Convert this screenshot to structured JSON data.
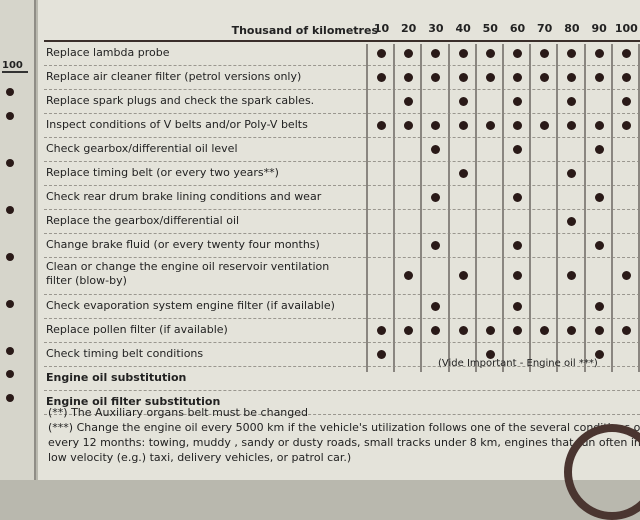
{
  "left_page": {
    "header": "100",
    "dot_rows": [
      0,
      1,
      3,
      5,
      7,
      9,
      11,
      12,
      13
    ]
  },
  "table": {
    "header_title": "Thousand of kilometres",
    "columns": [
      "10",
      "20",
      "30",
      "40",
      "50",
      "60",
      "70",
      "80",
      "90",
      "100"
    ],
    "rows": [
      {
        "label": "Replace lambda probe",
        "marks": [
          "10",
          "20",
          "30",
          "40",
          "50",
          "60",
          "70",
          "80",
          "90",
          "100"
        ]
      },
      {
        "label": "Replace air cleaner filter (petrol versions only)",
        "marks": [
          "10",
          "20",
          "30",
          "40",
          "50",
          "60",
          "70",
          "80",
          "90",
          "100"
        ]
      },
      {
        "label": "Replace spark plugs and check the spark cables.",
        "marks": [
          "20",
          "40",
          "60",
          "80",
          "100"
        ]
      },
      {
        "label": "Inspect conditions of V belts and/or Poly-V belts",
        "marks": [
          "10",
          "20",
          "30",
          "40",
          "50",
          "60",
          "70",
          "80",
          "90",
          "100"
        ]
      },
      {
        "label": "Check gearbox/differential oil level",
        "marks": [
          "30",
          "60",
          "90"
        ]
      },
      {
        "label": "Replace timing belt (or every two years**)",
        "marks": [
          "40",
          "80"
        ]
      },
      {
        "label": "Check rear drum brake lining conditions and wear",
        "marks": [
          "30",
          "60",
          "90"
        ]
      },
      {
        "label": "Replace the gearbox/differential oil",
        "marks": [
          "80"
        ]
      },
      {
        "label": "Change brake fluid (or every twenty four months)",
        "marks": [
          "30",
          "60",
          "90"
        ]
      },
      {
        "label": "Clean or change the engine oil reservoir ventilation filter (blow-by)",
        "marks": [
          "20",
          "40",
          "60",
          "80",
          "100"
        ],
        "tall": true
      },
      {
        "label": "Check evaporation system engine filter (if available)",
        "marks": [
          "30",
          "60",
          "90"
        ]
      },
      {
        "label": "Replace pollen filter (if available)",
        "marks": [
          "10",
          "20",
          "30",
          "40",
          "50",
          "60",
          "70",
          "80",
          "90",
          "100"
        ]
      },
      {
        "label": "Check timing belt conditions",
        "marks": [
          "10",
          "50",
          "90"
        ]
      },
      {
        "label": "Engine oil substitution",
        "marks": [],
        "bold": true
      },
      {
        "label": "Engine oil filter substitution",
        "marks": [],
        "bold": true
      }
    ],
    "oil_note": "(Vide Important - Engine oil ***)"
  },
  "footnotes": [
    "(**) The Auxiliary organs belt must be changed",
    "(***) Change the engine oil every 5000 km if the vehicle's utilization follows one of the several conditions or every 12 months: towing, muddy , sandy  or dusty roads, small tracks under 8 km, engines that run often in low velocity (e.g.) taxi, delivery vehicles, or patrol car.)"
  ]
}
